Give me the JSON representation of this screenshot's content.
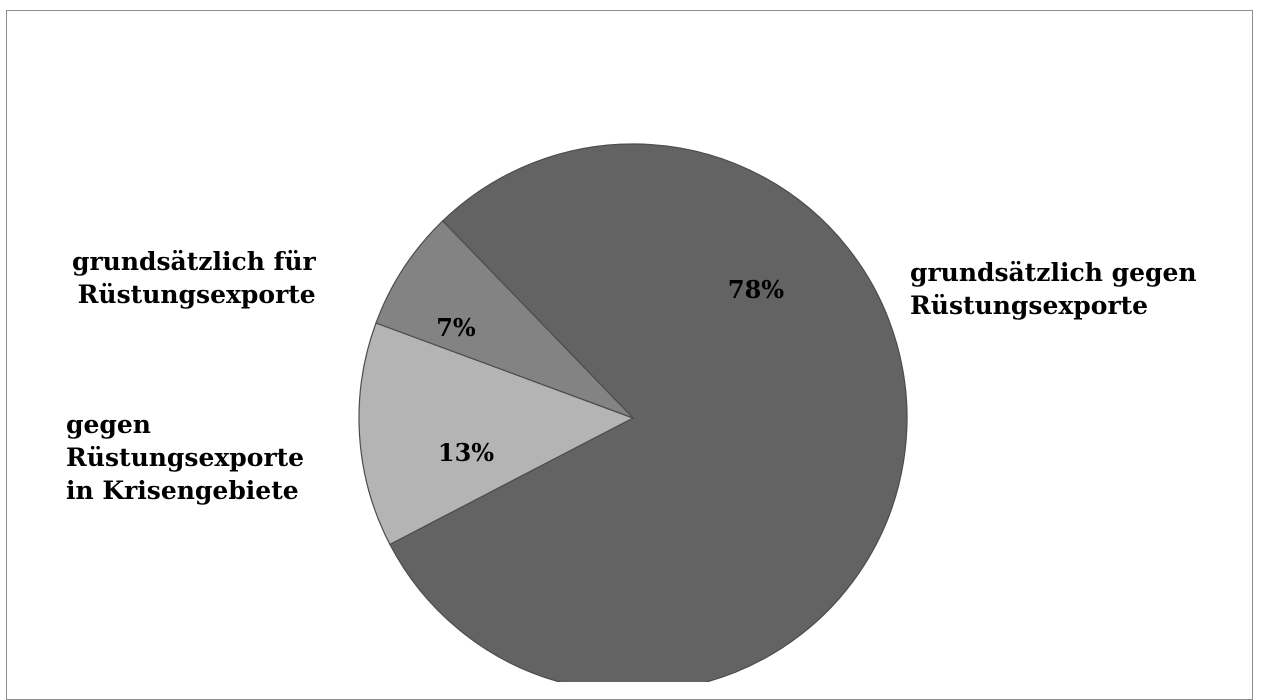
{
  "chart_data": {
    "type": "pie",
    "slices": [
      {
        "label_lines": [
          "grundsätzlich gegen",
          "Rüstungsexporte"
        ],
        "value": 78,
        "value_label": "78%",
        "color": "#636363"
      },
      {
        "label_lines": [
          "gegen",
          "Rüstungsexporte",
          "in Krisengebiete"
        ],
        "value": 13,
        "value_label": "13%",
        "color": "#b4b4b4"
      },
      {
        "label_lines": [
          "grundsätzlich für",
          "Rüstungsexporte"
        ],
        "value": 7,
        "value_label": "7%",
        "color": "#838383"
      }
    ],
    "border_color": "#4d4d4d",
    "frame_color": "#8c8c8c"
  }
}
